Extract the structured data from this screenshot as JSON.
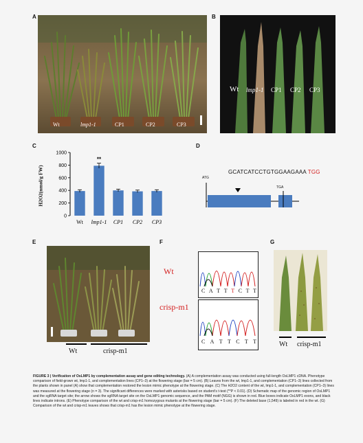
{
  "panels": {
    "a": {
      "label": "A",
      "lines": [
        "Wt",
        "lmp1-1",
        "CP1",
        "CP2",
        "CP3"
      ]
    },
    "b": {
      "label": "B",
      "lines": [
        "Wt",
        "lmp1-1",
        "CP1",
        "CP2",
        "CP3"
      ]
    },
    "c": {
      "label": "C"
    },
    "d": {
      "label": "D",
      "sequence": "GCATCATCCTGTGGAAGAAA",
      "pam": "TGG",
      "start_codon": "ATG",
      "stop_codon": "TGA"
    },
    "e": {
      "label": "E",
      "lines": [
        "Wt",
        "crisp-m1"
      ]
    },
    "f": {
      "label": "F",
      "wt_label": "Wt",
      "mutant_label": "crisp-m1",
      "wt_bases": [
        "C",
        "A",
        "T",
        "T",
        "T",
        "C",
        "T",
        "T"
      ],
      "mutant_bases": [
        "C",
        "A",
        "T",
        "T",
        "C",
        "T",
        "T"
      ]
    },
    "g": {
      "label": "G",
      "lines": [
        "Wt",
        "crisp-m1"
      ]
    }
  },
  "chart_data": {
    "type": "bar",
    "categories": [
      "Wt",
      "lmp1-1",
      "CP1",
      "CP2",
      "CP3"
    ],
    "values": [
      390,
      790,
      400,
      385,
      390
    ],
    "errors": [
      20,
      40,
      20,
      20,
      20
    ],
    "significance": [
      "",
      "**",
      "",
      "",
      ""
    ],
    "ylabel": "H2O2(nmol/g FW)",
    "yticks": [
      0,
      200,
      400,
      600,
      800,
      1000
    ],
    "ylim": [
      0,
      1000
    ],
    "bar_color": "#4a7cbf"
  },
  "caption": {
    "title": "FIGURE 3 | Verification of OsLMP1 by complementation assay and gene editing technology.",
    "body": "(A) A complementation assay was conducted using full-length OsLMP1 cDNA. Phenotype comparison of field-grown wt, lmp1-1, and complementation lines (CP1–3) at the flowering stage (bar = 5 cm). (B) Leaves from the wt, lmp1-1, and complementation (CP1–3) lines collected from the plants shown in panel (A) show that complementation restored the lesion mimic phenotype at the flowering stage. (C) The H2O2 content of the wt, lmp1-1, and complementation (CP1–3) lines was measured at the flowering stage (n = 3). The significant differences were marked with asterisks based on student's t-test (**P < 0.01). (D) Schematic map of the genomic region of OsLMP1 and the sgRNA target site; the arrow shows the sgRNA target site on the OsLMP1 genomic sequence, and the PAM motif (NGG) is shown in red. Blue boxes indicate OsLMP1 exons, and black lines indicate introns. (E) Phenotype comparison of the wt and crisp-m1 homozygous mutants at the flowering stage (bar = 5 cm). (F) The deleted base (1,549) is labeled in red in the wt. (G) Comparison of the wt and crisp-m1 leaves shows that crisp-m1 has the lesion mimic phenotype at the flowering stage."
  }
}
